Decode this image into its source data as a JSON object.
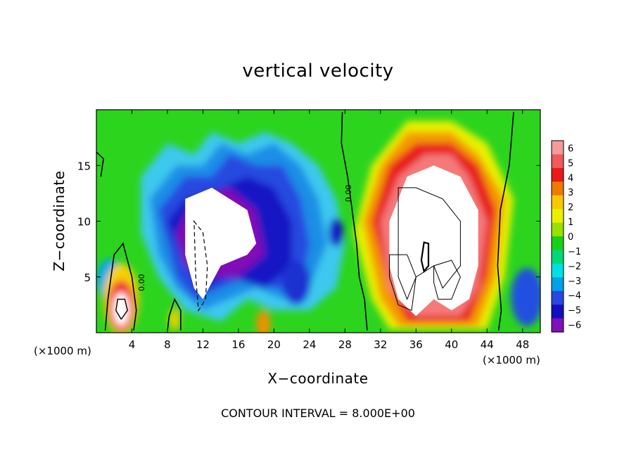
{
  "chart_data": {
    "type": "heatmap",
    "title": "vertical velocity",
    "xlabel": "X−coordinate",
    "ylabel": "Z−coordinate",
    "x_unit_left": "(×1000 m)",
    "x_unit_right": "(×1000 m)",
    "xlim": [
      0,
      50
    ],
    "ylim": [
      0,
      20
    ],
    "x_ticks": [
      4,
      8,
      12,
      16,
      20,
      24,
      28,
      32,
      36,
      40,
      44,
      48
    ],
    "y_ticks": [
      5,
      10,
      15
    ],
    "colorbar_labels": [
      "6",
      "5",
      "4",
      "3",
      "2",
      "1",
      "0",
      "−1",
      "−2",
      "−3",
      "−4",
      "−5",
      "−6"
    ],
    "colorbar_range": [
      -6,
      6
    ],
    "colorbar_colors": [
      "#f49a9a",
      "#f05a5a",
      "#e81a1a",
      "#f07a00",
      "#f8c800",
      "#e8f000",
      "#98e000",
      "#18d018",
      "#00d878",
      "#00e0e0",
      "#00a0e8",
      "#2848e0",
      "#1010c0",
      "#8010b8"
    ],
    "features": [
      {
        "kind": "updraft",
        "x": 38,
        "z": 8,
        "value": 6
      },
      {
        "kind": "downdraft",
        "x": 13,
        "z": 8,
        "value": -6
      },
      {
        "kind": "downdraft",
        "x": 21,
        "z": 11,
        "value": -5
      },
      {
        "kind": "updraft",
        "x": 3,
        "z": 3,
        "value": 5
      },
      {
        "kind": "downdraft",
        "x": 27,
        "z": 8,
        "value": -5
      },
      {
        "kind": "downdraft",
        "x": 48,
        "z": 3,
        "value": -5
      }
    ],
    "contour_label": "0.00",
    "contour_interval_text": "CONTOUR INTERVAL =  8.000E+00"
  }
}
